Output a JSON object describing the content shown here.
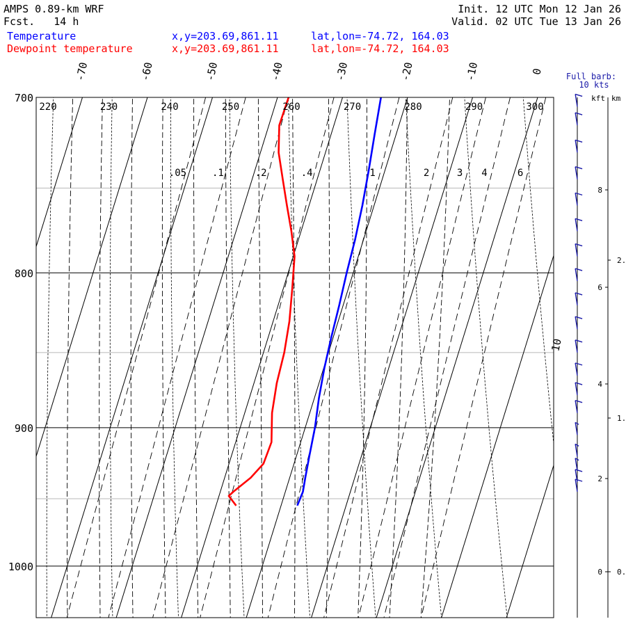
{
  "header": {
    "model": "AMPS 0.89-km WRF",
    "fcst_label": "Fcst.",
    "fcst_value": "14 h",
    "init_label": "Init.",
    "init_value": "12 UTC Mon 12 Jan 26",
    "valid_label": "Valid.",
    "valid_value": "02 UTC Tue 13 Jan 26",
    "temperature": {
      "label": "Temperature",
      "xy": "x,y=203.69,861.11",
      "latlon": "lat,lon=-74.72, 164.03"
    },
    "dewpoint": {
      "label": "Dewpoint temperature",
      "xy": "x,y=203.69,861.11",
      "latlon": "lat,lon=-74.72, 164.03"
    }
  },
  "chart_data": {
    "type": "skew-t log-p sounding",
    "pressure_range_hpa": [
      700,
      1040
    ],
    "pressure_labels": [
      "700",
      "800",
      "900",
      "1000"
    ],
    "isotherm_labels": [
      {
        "t": -70,
        "label": "-70"
      },
      {
        "t": -60,
        "label": "-60"
      },
      {
        "t": -50,
        "label": "-50"
      },
      {
        "t": -40,
        "label": "-40"
      },
      {
        "t": -30,
        "label": "-30"
      },
      {
        "t": -20,
        "label": "-20"
      },
      {
        "t": -10,
        "label": "-10"
      },
      {
        "t": 0,
        "label": "0"
      }
    ],
    "isotherm_10_label": "10",
    "isotherm_step_c": 10,
    "dry_adiabat_labels_k": [
      "220",
      "230",
      "240",
      "250",
      "260",
      "270",
      "280",
      "290",
      "300"
    ],
    "dry_adiabats_k": [
      200,
      210,
      220,
      230,
      240,
      250,
      260,
      270,
      280,
      290,
      300,
      310,
      320
    ],
    "moist_adiabats_tw_c": [
      -50,
      -45,
      -40,
      -35,
      -30,
      -25,
      -20,
      -15,
      -10,
      -5,
      0,
      5
    ],
    "mixing_ratio_labels": [
      ".05",
      ".1",
      ".2",
      ".4",
      "1",
      "2",
      "3",
      "4",
      "6"
    ],
    "mixing_ratio_gkg": [
      0.05,
      0.1,
      0.2,
      0.4,
      1,
      2,
      3,
      4,
      6
    ],
    "temperature_profile": [
      {
        "p": 955,
        "t": -17.5
      },
      {
        "p": 945,
        "t": -17.3
      },
      {
        "p": 935,
        "t": -17.6
      },
      {
        "p": 920,
        "t": -18.0
      },
      {
        "p": 900,
        "t": -18.5
      },
      {
        "p": 880,
        "t": -19.3
      },
      {
        "p": 860,
        "t": -19.9
      },
      {
        "p": 840,
        "t": -20.3
      },
      {
        "p": 820,
        "t": -20.6
      },
      {
        "p": 800,
        "t": -21.0
      },
      {
        "p": 780,
        "t": -21.3
      },
      {
        "p": 760,
        "t": -21.8
      },
      {
        "p": 740,
        "t": -22.5
      },
      {
        "p": 720,
        "t": -23.3
      },
      {
        "p": 700,
        "t": -24.1
      }
    ],
    "dewpoint_profile": [
      {
        "p": 955,
        "t": -26.9
      },
      {
        "p": 948,
        "t": -28.5
      },
      {
        "p": 945,
        "t": -28.0
      },
      {
        "p": 935,
        "t": -26.0
      },
      {
        "p": 925,
        "t": -24.7
      },
      {
        "p": 910,
        "t": -24.5
      },
      {
        "p": 890,
        "t": -25.8
      },
      {
        "p": 870,
        "t": -26.5
      },
      {
        "p": 850,
        "t": -26.8
      },
      {
        "p": 830,
        "t": -27.5
      },
      {
        "p": 810,
        "t": -28.6
      },
      {
        "p": 790,
        "t": -29.8
      },
      {
        "p": 775,
        "t": -31.5
      },
      {
        "p": 760,
        "t": -33.4
      },
      {
        "p": 745,
        "t": -35.3
      },
      {
        "p": 730,
        "t": -37.2
      },
      {
        "p": 715,
        "t": -38.4
      },
      {
        "p": 700,
        "t": -38.3
      }
    ],
    "wind_barbs": [
      {
        "p": 945,
        "speed_kt": 10
      },
      {
        "p": 938,
        "speed_kt": 10
      },
      {
        "p": 930,
        "speed_kt": 5
      },
      {
        "p": 920,
        "speed_kt": 5
      },
      {
        "p": 905,
        "speed_kt": 5
      },
      {
        "p": 890,
        "speed_kt": 10
      },
      {
        "p": 878,
        "speed_kt": 10
      },
      {
        "p": 865,
        "speed_kt": 10
      },
      {
        "p": 850,
        "speed_kt": 10
      },
      {
        "p": 835,
        "speed_kt": 10
      },
      {
        "p": 820,
        "speed_kt": 10
      },
      {
        "p": 805,
        "speed_kt": 10
      },
      {
        "p": 790,
        "speed_kt": 10
      },
      {
        "p": 775,
        "speed_kt": 10
      },
      {
        "p": 760,
        "speed_kt": 10
      },
      {
        "p": 745,
        "speed_kt": 10
      },
      {
        "p": 730,
        "speed_kt": 10
      },
      {
        "p": 715,
        "speed_kt": 10
      },
      {
        "p": 705,
        "speed_kt": 10
      }
    ],
    "full_barb_label": [
      "Full barb:",
      "10 kts"
    ],
    "height_axis": {
      "kft_label": "kft",
      "km_label": "km",
      "kft_ticks": [
        {
          "v": 0,
          "label": "0"
        },
        {
          "v": 2,
          "label": "2"
        },
        {
          "v": 4,
          "label": "4"
        },
        {
          "v": 6,
          "label": "6"
        },
        {
          "v": 8,
          "label": "8"
        }
      ],
      "km_ticks": [
        {
          "v": 0,
          "label": "0."
        },
        {
          "v": 1,
          "label": "1."
        },
        {
          "v": 2,
          "label": "2."
        }
      ]
    },
    "colors": {
      "temperature": "#0000ff",
      "dewpoint": "#ff0000",
      "barbs": "#1a1aa8",
      "grid": "#000000"
    }
  }
}
